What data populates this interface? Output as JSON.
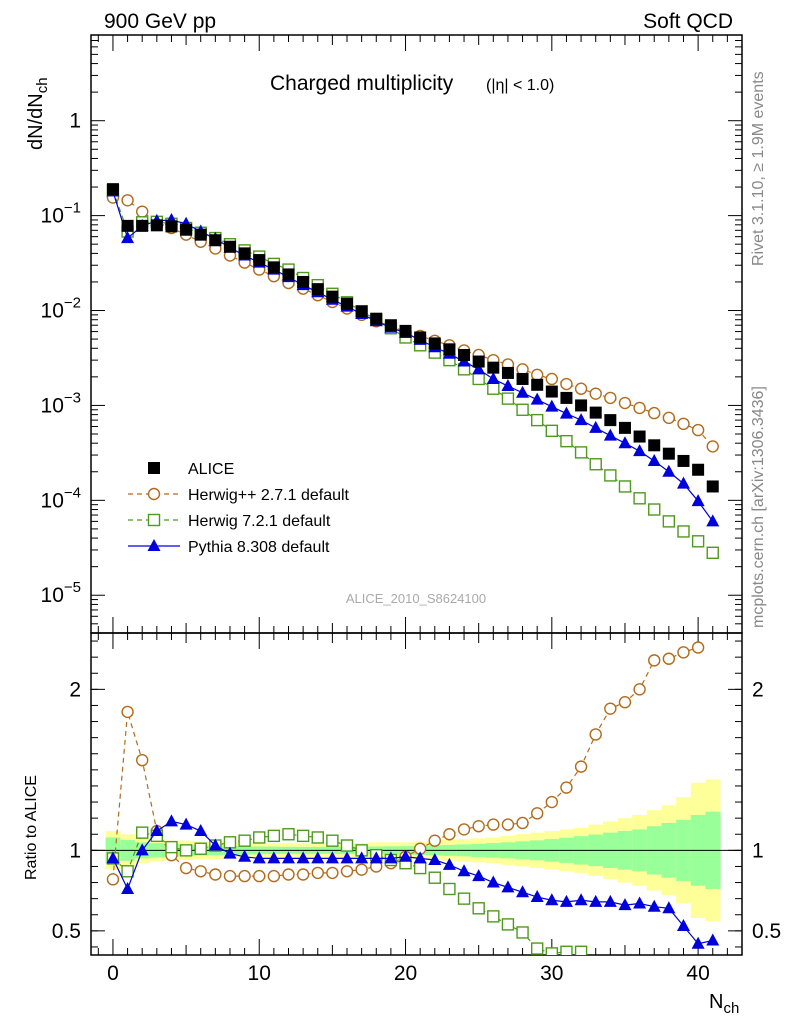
{
  "header": {
    "left": "900 GeV pp",
    "right": "Soft QCD"
  },
  "side_labels": {
    "rivet": "Rivet 3.1.10, ≥ 1.9M events",
    "mcplots": "mcplots.cern.ch [arXiv:1306.3436]"
  },
  "analysis_id": "ALICE_2010_S8624100",
  "colors": {
    "alice": "#000000",
    "herwigpp": "#b36b1b",
    "herwig7": "#4e9a1e",
    "pythia": "#0000dd",
    "band_yellow": "#ffff99",
    "band_green": "#99ff99"
  },
  "chart_data": [
    {
      "type": "scatter",
      "title": "Charged multiplicity",
      "title_suffix": "(|η| < 1.0)",
      "ylabel": "dN/dN",
      "ylabel_sub": "ch",
      "xlabel": "N",
      "xlabel_sub": "ch",
      "x_range": [
        -1.5,
        43
      ],
      "y_scale": "log",
      "y_range": [
        4e-06,
        8
      ],
      "y_ticks": [
        {
          "v": 1,
          "base": "1",
          "exp": ""
        },
        {
          "v": 0.1,
          "base": "10",
          "exp": "−1"
        },
        {
          "v": 0.01,
          "base": "10",
          "exp": "−2"
        },
        {
          "v": 0.001,
          "base": "10",
          "exp": "−3"
        },
        {
          "v": 0.0001,
          "base": "10",
          "exp": "−4"
        },
        {
          "v": 1e-05,
          "base": "10",
          "exp": "−5"
        }
      ],
      "series": [
        {
          "name": "ALICE",
          "style": "alice",
          "x": [
            0,
            1,
            2,
            3,
            4,
            5,
            6,
            7,
            8,
            9,
            10,
            11,
            12,
            13,
            14,
            15,
            16,
            17,
            18,
            19,
            20,
            21,
            22,
            23,
            24,
            25,
            26,
            27,
            28,
            29,
            30,
            31,
            32,
            33,
            34,
            35,
            36,
            37,
            38,
            39,
            40,
            41
          ],
          "y": [
            0.19,
            0.078,
            0.078,
            0.079,
            0.077,
            0.071,
            0.063,
            0.055,
            0.047,
            0.04,
            0.034,
            0.0285,
            0.024,
            0.02,
            0.0168,
            0.014,
            0.0118,
            0.0098,
            0.0082,
            0.007,
            0.0061,
            0.0052,
            0.0045,
            0.0039,
            0.0034,
            0.0029,
            0.0025,
            0.0022,
            0.0019,
            0.00165,
            0.0014,
            0.0012,
            0.001,
            0.00084,
            0.0007,
            0.00058,
            0.00047,
            0.00038,
            0.00031,
            0.00026,
            0.00021,
            0.00014
          ]
        },
        {
          "name": "Herwig++ 2.7.1 default",
          "style": "herwigpp",
          "x": [
            0,
            1,
            2,
            3,
            4,
            5,
            6,
            7,
            8,
            9,
            10,
            11,
            12,
            13,
            14,
            15,
            16,
            17,
            18,
            19,
            20,
            21,
            22,
            23,
            24,
            25,
            26,
            27,
            28,
            29,
            30,
            31,
            32,
            33,
            34,
            35,
            36,
            37,
            38,
            39,
            40,
            41
          ],
          "y": [
            0.155,
            0.145,
            0.11,
            0.085,
            0.074,
            0.063,
            0.053,
            0.045,
            0.038,
            0.032,
            0.027,
            0.023,
            0.0195,
            0.017,
            0.0145,
            0.0123,
            0.0105,
            0.009,
            0.0077,
            0.0068,
            0.006,
            0.0054,
            0.0048,
            0.0043,
            0.0038,
            0.0034,
            0.003,
            0.0027,
            0.0024,
            0.0021,
            0.0019,
            0.00168,
            0.0015,
            0.00133,
            0.0012,
            0.00106,
            0.00094,
            0.00083,
            0.00074,
            0.00064,
            0.00055,
            0.00037
          ]
        },
        {
          "name": "Herwig 7.2.1 default",
          "style": "herwig7",
          "x": [
            0,
            1,
            2,
            3,
            4,
            5,
            6,
            7,
            8,
            9,
            10,
            11,
            12,
            13,
            14,
            15,
            16,
            17,
            18,
            19,
            20,
            21,
            22,
            23,
            24,
            25,
            26,
            27,
            28,
            29,
            30,
            31,
            32,
            33,
            34,
            35,
            36,
            37,
            38,
            39,
            40,
            41
          ],
          "y": [
            0.185,
            0.068,
            0.085,
            0.086,
            0.082,
            0.074,
            0.066,
            0.058,
            0.05,
            0.043,
            0.037,
            0.031,
            0.027,
            0.022,
            0.0185,
            0.015,
            0.0122,
            0.0098,
            0.008,
            0.0065,
            0.0052,
            0.0043,
            0.0036,
            0.003,
            0.0024,
            0.0019,
            0.0015,
            0.00118,
            0.0009,
            0.0007,
            0.00054,
            0.00042,
            0.00032,
            0.00024,
            0.000183,
            0.00014,
            0.000105,
            8e-05,
            6e-05,
            4.7e-05,
            3.7e-05,
            2.8e-05
          ]
        },
        {
          "name": "Pythia 8.308 default",
          "style": "pythia",
          "x": [
            0,
            1,
            2,
            3,
            4,
            5,
            6,
            7,
            8,
            9,
            10,
            11,
            12,
            13,
            14,
            15,
            16,
            17,
            18,
            19,
            20,
            21,
            22,
            23,
            24,
            25,
            26,
            27,
            28,
            29,
            30,
            31,
            32,
            33,
            34,
            35,
            36,
            37,
            38,
            39,
            40,
            41
          ],
          "y": [
            0.18,
            0.058,
            0.078,
            0.088,
            0.09,
            0.082,
            0.068,
            0.057,
            0.046,
            0.038,
            0.032,
            0.027,
            0.0225,
            0.0185,
            0.0156,
            0.013,
            0.011,
            0.0092,
            0.0077,
            0.0066,
            0.0058,
            0.0049,
            0.0041,
            0.0035,
            0.0029,
            0.0024,
            0.0019,
            0.0016,
            0.00136,
            0.00115,
            0.00097,
            0.00082,
            0.0007,
            0.00058,
            0.00048,
            0.0004,
            0.00033,
            0.00026,
            0.0002,
            0.00015,
            9.8e-05,
            6e-05
          ]
        }
      ]
    },
    {
      "type": "line",
      "ylabel": "Ratio to ALICE",
      "y_range": [
        0.35,
        2.35
      ],
      "y_ticks": [
        {
          "v": 0.5,
          "label": "0.5"
        },
        {
          "v": 1,
          "label": "1"
        },
        {
          "v": 2,
          "label": "2"
        }
      ],
      "x_ticks": [
        0,
        10,
        20,
        30,
        40
      ],
      "band_x": [
        0,
        1,
        2,
        3,
        4,
        5,
        6,
        7,
        8,
        9,
        10,
        11,
        12,
        13,
        14,
        15,
        16,
        17,
        18,
        19,
        20,
        21,
        22,
        23,
        24,
        25,
        26,
        27,
        28,
        29,
        30,
        31,
        32,
        33,
        34,
        35,
        36,
        37,
        38,
        39,
        40,
        41
      ],
      "band_yellow": [
        0.12,
        0.1,
        0.08,
        0.07,
        0.06,
        0.06,
        0.055,
        0.055,
        0.05,
        0.05,
        0.045,
        0.045,
        0.045,
        0.045,
        0.045,
        0.045,
        0.045,
        0.045,
        0.05,
        0.05,
        0.05,
        0.055,
        0.06,
        0.065,
        0.07,
        0.075,
        0.08,
        0.09,
        0.1,
        0.11,
        0.12,
        0.13,
        0.14,
        0.16,
        0.18,
        0.2,
        0.22,
        0.25,
        0.28,
        0.33,
        0.42,
        0.44
      ],
      "band_green": [
        0.08,
        0.065,
        0.05,
        0.045,
        0.04,
        0.035,
        0.032,
        0.03,
        0.028,
        0.026,
        0.024,
        0.023,
        0.022,
        0.022,
        0.022,
        0.022,
        0.023,
        0.023,
        0.024,
        0.025,
        0.026,
        0.028,
        0.031,
        0.034,
        0.037,
        0.041,
        0.045,
        0.05,
        0.056,
        0.062,
        0.07,
        0.078,
        0.088,
        0.098,
        0.11,
        0.12,
        0.13,
        0.15,
        0.17,
        0.19,
        0.22,
        0.24
      ],
      "series": [
        {
          "name": "Herwig++ 2.7.1 default",
          "style": "herwigpp",
          "x": [
            0,
            1,
            2,
            3,
            4,
            5,
            6,
            7,
            8,
            9,
            10,
            11,
            12,
            13,
            14,
            15,
            16,
            17,
            18,
            19,
            20,
            21,
            22,
            23,
            24,
            25,
            26,
            27,
            28,
            29,
            30,
            31,
            32,
            33,
            34,
            35,
            36,
            37,
            38,
            39,
            40
          ],
          "y": [
            0.82,
            1.86,
            1.56,
            1.12,
            0.97,
            0.89,
            0.87,
            0.85,
            0.84,
            0.84,
            0.84,
            0.84,
            0.85,
            0.85,
            0.86,
            0.86,
            0.87,
            0.88,
            0.9,
            0.92,
            0.96,
            1.01,
            1.06,
            1.1,
            1.13,
            1.15,
            1.16,
            1.16,
            1.17,
            1.23,
            1.3,
            1.39,
            1.52,
            1.72,
            1.88,
            1.92,
            2.0,
            2.18,
            2.19,
            2.23,
            2.26
          ]
        },
        {
          "name": "Herwig 7.2.1 default",
          "style": "herwig7",
          "x": [
            0,
            1,
            2,
            3,
            4,
            5,
            6,
            7,
            8,
            9,
            10,
            11,
            12,
            13,
            14,
            15,
            16,
            17,
            18,
            19,
            20,
            21,
            22,
            23,
            24,
            25,
            26,
            27,
            28,
            29,
            30,
            31,
            32
          ],
          "y": [
            0.95,
            0.87,
            1.11,
            1.09,
            1.02,
            1.0,
            1.01,
            1.03,
            1.05,
            1.06,
            1.08,
            1.09,
            1.1,
            1.09,
            1.08,
            1.06,
            1.03,
            1.0,
            0.97,
            0.94,
            0.92,
            0.89,
            0.83,
            0.76,
            0.7,
            0.64,
            0.59,
            0.54,
            0.49,
            0.39,
            0.36,
            0.37,
            0.37
          ]
        },
        {
          "name": "Pythia 8.308 default",
          "style": "pythia",
          "x": [
            0,
            1,
            2,
            3,
            4,
            5,
            6,
            7,
            8,
            9,
            10,
            11,
            12,
            13,
            14,
            15,
            16,
            17,
            18,
            19,
            20,
            21,
            22,
            23,
            24,
            25,
            26,
            27,
            28,
            29,
            30,
            31,
            32,
            33,
            34,
            35,
            36,
            37,
            38,
            39,
            40,
            41
          ],
          "y": [
            0.95,
            0.76,
            1.0,
            1.12,
            1.18,
            1.16,
            1.12,
            1.03,
            0.98,
            0.96,
            0.95,
            0.95,
            0.95,
            0.95,
            0.95,
            0.95,
            0.95,
            0.95,
            0.95,
            0.95,
            0.96,
            0.95,
            0.94,
            0.91,
            0.87,
            0.84,
            0.8,
            0.77,
            0.74,
            0.71,
            0.69,
            0.68,
            0.69,
            0.68,
            0.68,
            0.66,
            0.67,
            0.65,
            0.64,
            0.53,
            0.42,
            0.44
          ]
        }
      ]
    }
  ]
}
